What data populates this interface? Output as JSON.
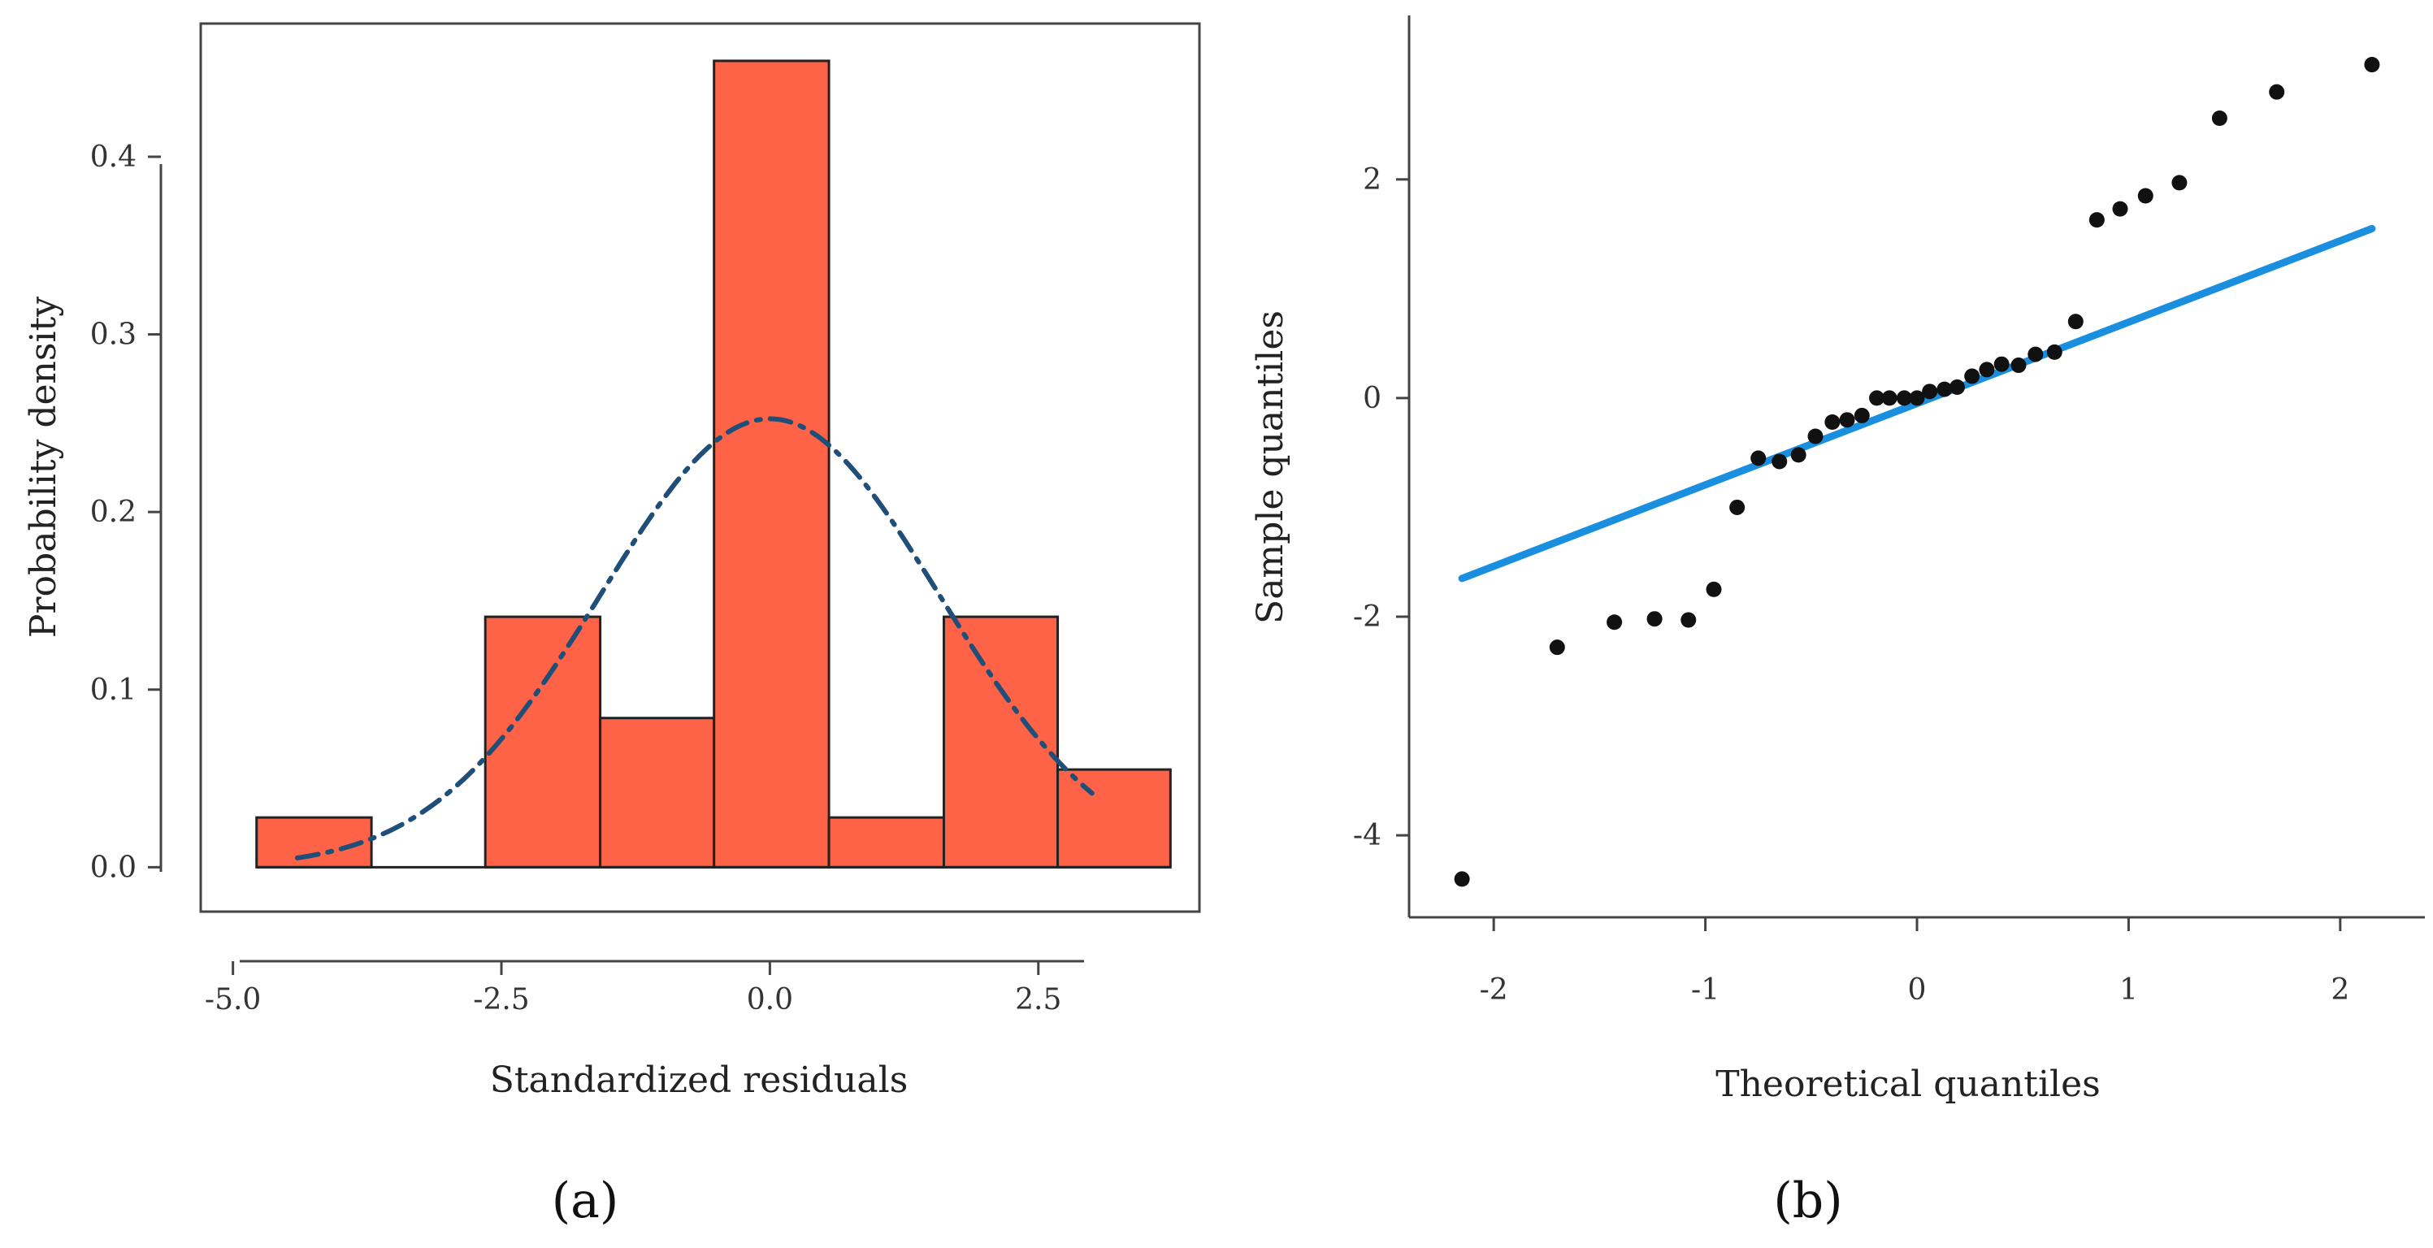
{
  "chart_data": [
    {
      "type": "histogram",
      "panel_label": "(a)",
      "xlabel": "Standardized residuals",
      "ylabel": "Probability density",
      "xlim": [
        -5.3,
        4.0
      ],
      "ylim": [
        -0.025,
        0.475
      ],
      "x_ticks": [
        -5.0,
        -2.5,
        0.0,
        2.5
      ],
      "x_tick_labels": [
        "-5.0",
        "-2.5",
        "0.0",
        "2.5"
      ],
      "y_ticks": [
        0.0,
        0.1,
        0.2,
        0.3,
        0.4
      ],
      "y_tick_labels": [
        "0.0",
        "0.1",
        "0.2",
        "0.3",
        "0.4"
      ],
      "bins": [
        {
          "x0": -4.78,
          "x1": -3.71,
          "density": 0.028
        },
        {
          "x0": -3.71,
          "x1": -2.65,
          "density": 0.0
        },
        {
          "x0": -2.65,
          "x1": -1.58,
          "density": 0.141
        },
        {
          "x0": -1.58,
          "x1": -0.52,
          "density": 0.084
        },
        {
          "x0": -0.52,
          "x1": 0.55,
          "density": 0.454
        },
        {
          "x0": 0.55,
          "x1": 1.62,
          "density": 0.028
        },
        {
          "x0": 1.62,
          "x1": 2.68,
          "density": 0.141
        },
        {
          "x0": 2.68,
          "x1": 3.73,
          "density": 0.055
        }
      ],
      "density_curve": {
        "mean": 0.0,
        "sd": 1.58,
        "x_from": -4.4,
        "x_to": 3.0,
        "style": "dash-dot"
      },
      "colors": {
        "bar_fill": "#ff6347",
        "bar_stroke": "#222222",
        "curve": "#1f4e79"
      }
    },
    {
      "type": "scatter",
      "panel_label": "(b)",
      "xlabel": "Theoretical quantiles",
      "ylabel": "Sample quantiles",
      "xlim": [
        -2.4,
        2.4
      ],
      "ylim": [
        -4.75,
        3.5
      ],
      "x_ticks": [
        -2,
        -1,
        0,
        1,
        2
      ],
      "x_tick_labels": [
        "-2",
        "-1",
        "0",
        "1",
        "2"
      ],
      "y_ticks": [
        -4,
        -2,
        0,
        2
      ],
      "y_tick_labels": [
        "-4",
        "-2",
        "0",
        "2"
      ],
      "points": [
        [
          -2.15,
          -4.4
        ],
        [
          -1.7,
          -2.28
        ],
        [
          -1.43,
          -2.05
        ],
        [
          -1.24,
          -2.02
        ],
        [
          -1.08,
          -2.03
        ],
        [
          -0.96,
          -1.75
        ],
        [
          -0.85,
          -1.0
        ],
        [
          -0.75,
          -0.55
        ],
        [
          -0.65,
          -0.58
        ],
        [
          -0.56,
          -0.52
        ],
        [
          -0.48,
          -0.35
        ],
        [
          -0.4,
          -0.22
        ],
        [
          -0.33,
          -0.2
        ],
        [
          -0.26,
          -0.16
        ],
        [
          -0.19,
          0.0
        ],
        [
          -0.13,
          0.0
        ],
        [
          -0.06,
          0.0
        ],
        [
          0.0,
          0.0
        ],
        [
          0.06,
          0.06
        ],
        [
          0.13,
          0.08
        ],
        [
          0.19,
          0.1
        ],
        [
          0.26,
          0.2
        ],
        [
          0.33,
          0.26
        ],
        [
          0.4,
          0.31
        ],
        [
          0.48,
          0.3
        ],
        [
          0.56,
          0.4
        ],
        [
          0.65,
          0.42
        ],
        [
          0.75,
          0.7
        ],
        [
          0.85,
          1.63
        ],
        [
          0.96,
          1.73
        ],
        [
          1.08,
          1.85
        ],
        [
          1.24,
          1.97
        ],
        [
          1.43,
          2.56
        ],
        [
          1.7,
          2.8
        ],
        [
          2.15,
          3.05
        ]
      ],
      "reference_line": {
        "x": [
          -2.15,
          2.15
        ],
        "y": [
          -1.65,
          1.55
        ]
      },
      "colors": {
        "point": "#111111",
        "line": "#1a8fe0"
      }
    }
  ]
}
